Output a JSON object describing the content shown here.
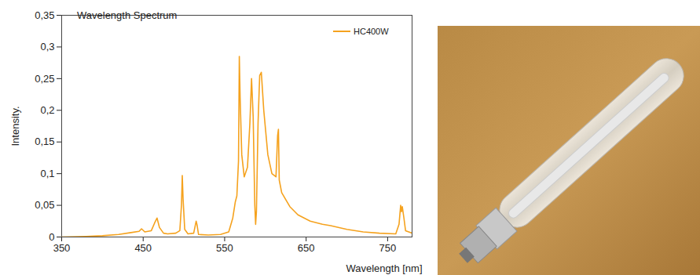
{
  "chart_data": {
    "type": "line",
    "title": "Wavelength Spectrum",
    "x_label": "Wavelength [nm]",
    "y_label": "Intensity.",
    "x": [
      350,
      380,
      400,
      420,
      435,
      445,
      448,
      452,
      460,
      464,
      467,
      470,
      475,
      480,
      490,
      495,
      497,
      498,
      499,
      501,
      505,
      512,
      515,
      516,
      518,
      530,
      545,
      555,
      560,
      563,
      565,
      567,
      568,
      569,
      571,
      574,
      578,
      581,
      583,
      585,
      587,
      588,
      589,
      591,
      593,
      595,
      598,
      603,
      608,
      613,
      615,
      616,
      617,
      620,
      630,
      640,
      655,
      670,
      680,
      700,
      720,
      740,
      760,
      764,
      766,
      767,
      768,
      770,
      772,
      780
    ],
    "series": [
      {
        "name": "HC400W",
        "color": "#f5a21e",
        "values": [
          0,
          0.001,
          0.002,
          0.004,
          0.007,
          0.009,
          0.013,
          0.008,
          0.01,
          0.022,
          0.03,
          0.015,
          0.006,
          0.005,
          0.006,
          0.01,
          0.05,
          0.097,
          0.06,
          0.012,
          0.005,
          0.006,
          0.025,
          0.02,
          0.004,
          0.003,
          0.004,
          0.008,
          0.03,
          0.055,
          0.065,
          0.12,
          0.285,
          0.22,
          0.13,
          0.095,
          0.11,
          0.18,
          0.25,
          0.19,
          0.05,
          0.02,
          0.04,
          0.18,
          0.255,
          0.26,
          0.2,
          0.13,
          0.1,
          0.095,
          0.16,
          0.17,
          0.09,
          0.07,
          0.048,
          0.035,
          0.025,
          0.02,
          0.018,
          0.012,
          0.008,
          0.006,
          0.005,
          0.02,
          0.05,
          0.04,
          0.048,
          0.03,
          0.01,
          0.006
        ]
      }
    ],
    "xlim": [
      350,
      780
    ],
    "xticks": [
      350,
      450,
      550,
      650,
      750
    ],
    "ylim": [
      0,
      0.35
    ],
    "yticks": [
      0,
      {
        "value": 0.05,
        "label": "0,05"
      },
      {
        "value": 0.1,
        "label": "0,1"
      },
      {
        "value": 0.15,
        "label": "0,15"
      },
      {
        "value": 0.2,
        "label": "0,2"
      },
      {
        "value": 0.25,
        "label": "0,25"
      },
      {
        "value": 0.3,
        "label": "0,3"
      },
      {
        "value": 0.35,
        "label": "0,35"
      }
    ],
    "grid": false,
    "legend": "top-right"
  }
}
